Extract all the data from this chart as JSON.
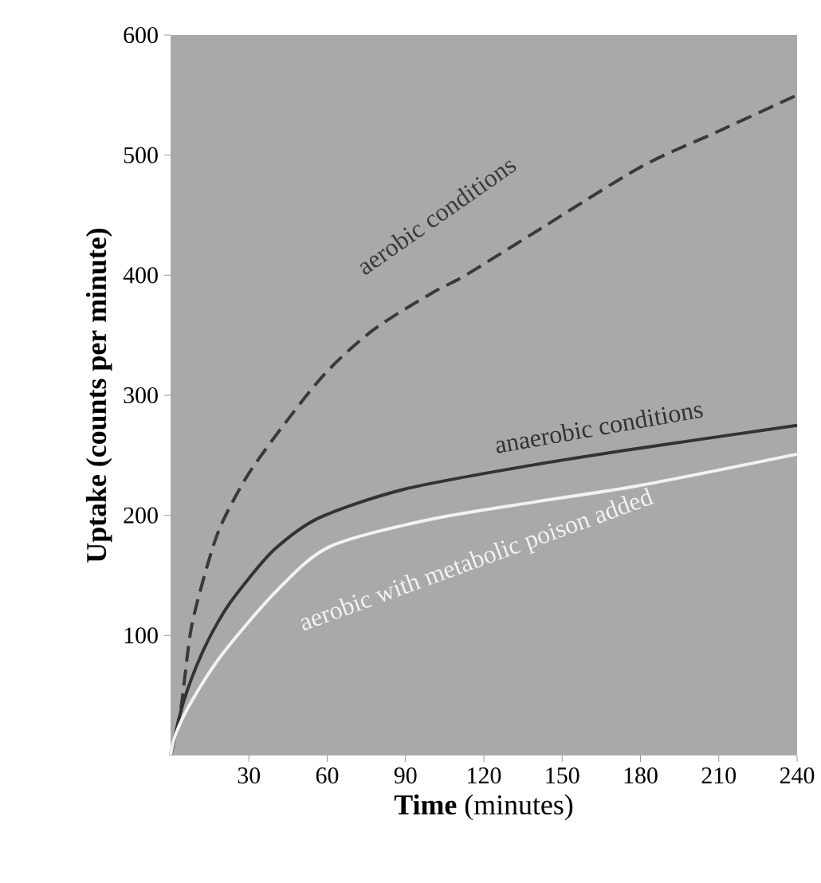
{
  "chart_data": {
    "type": "line",
    "xlabel": "**Time** (minutes)",
    "ylabel": "Uptake (counts per minute)",
    "xlim": [
      0,
      240
    ],
    "ylim": [
      0,
      600
    ],
    "xticks": [
      30,
      60,
      90,
      120,
      150,
      180,
      210,
      240
    ],
    "yticks": [
      100,
      200,
      300,
      400,
      500,
      600
    ],
    "grid": false,
    "marker": "none",
    "series": [
      {
        "name": "aerobic conditions",
        "color": "#3a3a3a",
        "line_style": "dashed",
        "x": [
          0,
          4,
          8,
          15,
          20,
          30,
          45,
          60,
          78,
          100,
          113,
          139,
          180,
          210,
          240
        ],
        "values": [
          0,
          40,
          107,
          165,
          195,
          235,
          280,
          320,
          355,
          385,
          400,
          435,
          490,
          520,
          550
        ]
      },
      {
        "name": "anaerobic conditions",
        "color": "#333333",
        "line_style": "solid",
        "x": [
          0,
          5,
          12,
          20,
          28,
          40,
          57,
          90,
          139,
          180,
          240
        ],
        "values": [
          0,
          45,
          85,
          118,
          142,
          172,
          198,
          222,
          242,
          256,
          275
        ]
      },
      {
        "name": "aerobic with metabolic poison added",
        "color": "#f2f2f2",
        "line_style": "solid",
        "x": [
          0,
          2,
          8,
          20,
          41,
          61,
          98,
          139,
          180,
          240
        ],
        "values": [
          0,
          18,
          45,
          85,
          138,
          174,
          196,
          211,
          225,
          251
        ]
      }
    ]
  }
}
